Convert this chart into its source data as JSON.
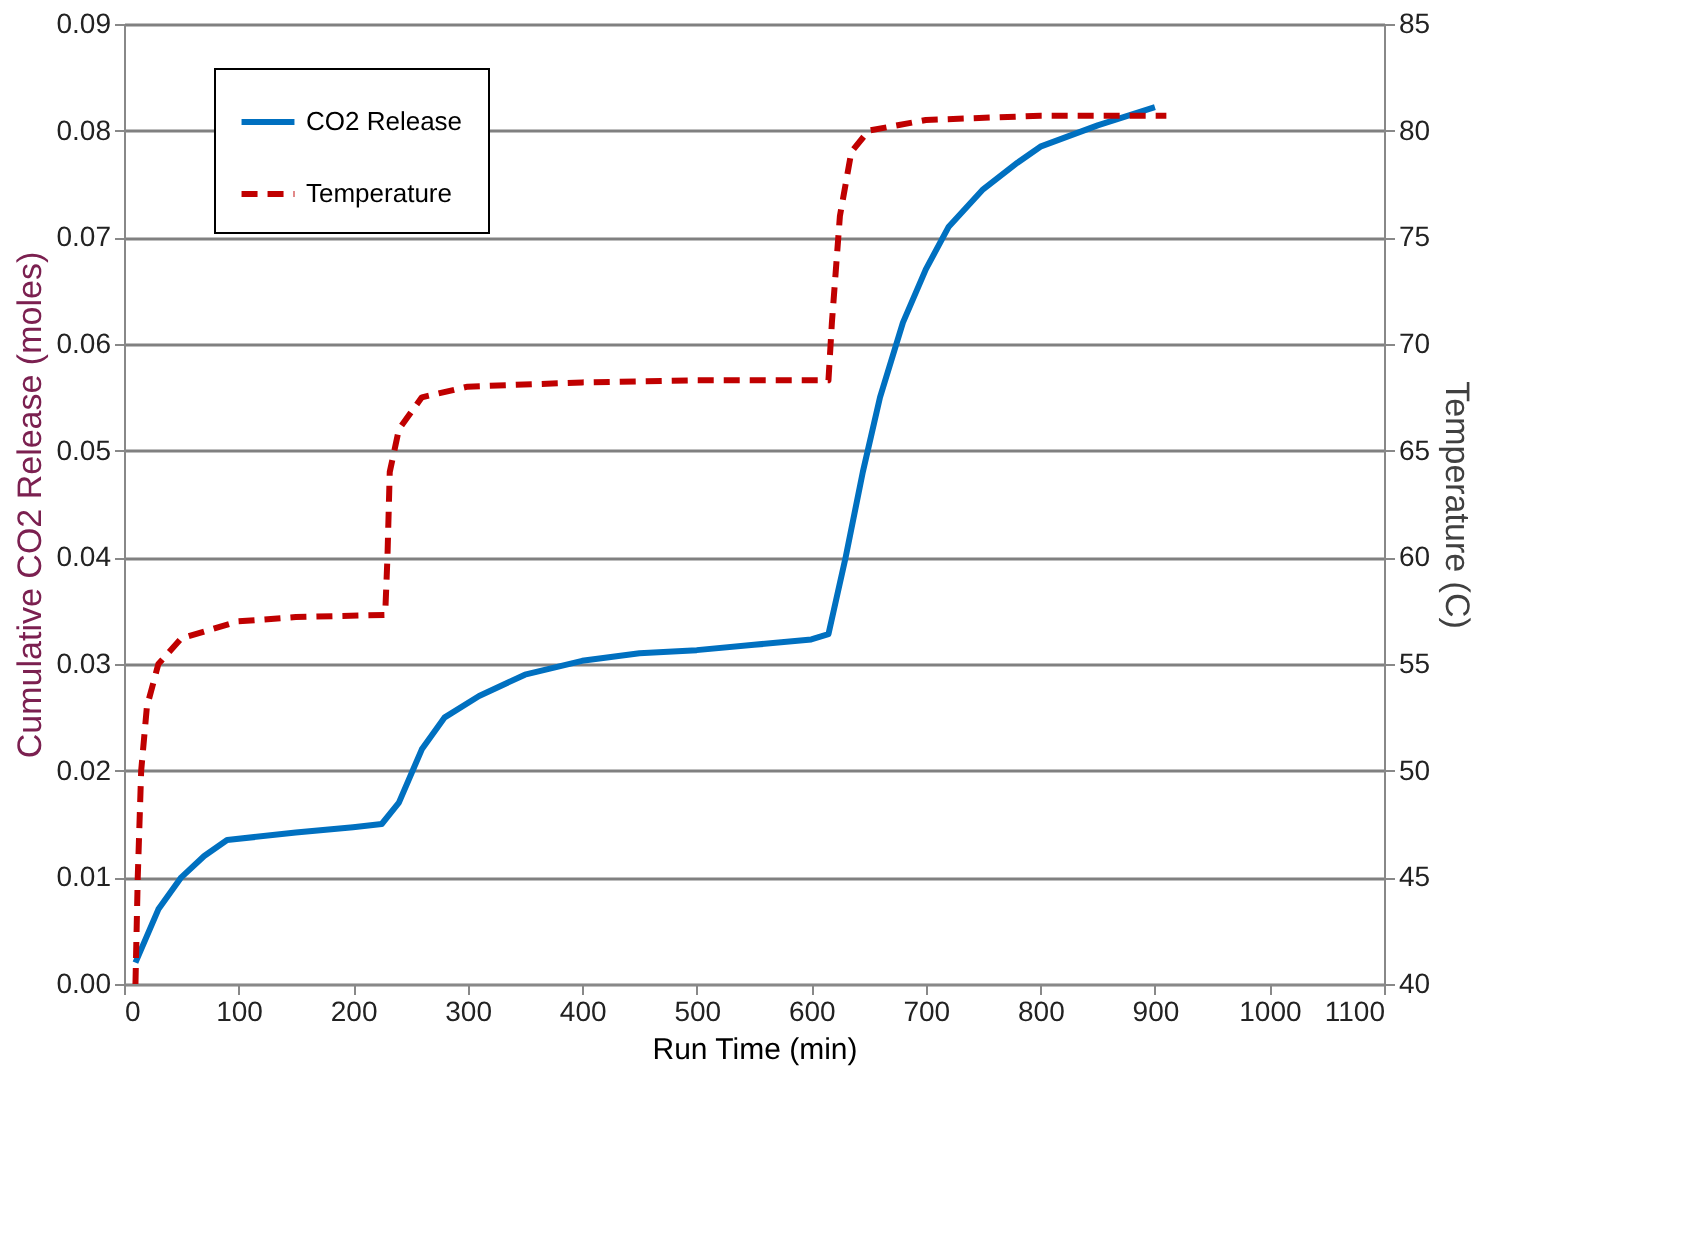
{
  "chart_data": {
    "type": "line",
    "xlabel": "Run Time (min)",
    "ylabel": "Cumulative  CO2 Release (moles)",
    "y2label": "Temperature (C)",
    "xlim": [
      0,
      1100
    ],
    "xticks": [
      0,
      100,
      200,
      300,
      400,
      500,
      600,
      700,
      800,
      900,
      1000,
      1100
    ],
    "ylim": [
      0,
      0.09
    ],
    "yticks": [
      {
        "value": 0,
        "label": "0.00"
      },
      {
        "value": 0.01,
        "label": "0.01"
      },
      {
        "value": 0.02,
        "label": "0.02"
      },
      {
        "value": 0.03,
        "label": "0.03"
      },
      {
        "value": 0.04,
        "label": "0.04"
      },
      {
        "value": 0.05,
        "label": "0.05"
      },
      {
        "value": 0.06,
        "label": "0.06"
      },
      {
        "value": 0.07,
        "label": "0.07"
      },
      {
        "value": 0.08,
        "label": "0.08"
      },
      {
        "value": 0.09,
        "label": "0.09"
      }
    ],
    "y2lim": [
      40,
      85
    ],
    "y2ticks": [
      40,
      45,
      50,
      55,
      60,
      65,
      70,
      75,
      80,
      85
    ],
    "grid": "y",
    "legend": "top left",
    "series": [
      {
        "name": "CO2 Release",
        "color": "#0070c0",
        "line_style": "solid",
        "x": [
          10,
          30,
          50,
          70,
          90,
          150,
          200,
          225,
          240,
          260,
          280,
          310,
          350,
          400,
          450,
          500,
          550,
          600,
          615,
          630,
          645,
          660,
          680,
          700,
          720,
          750,
          780,
          800,
          850,
          900
        ],
        "values": [
          0.002,
          0.007,
          0.01,
          0.012,
          0.0135,
          0.0142,
          0.0147,
          0.015,
          0.017,
          0.022,
          0.025,
          0.027,
          0.029,
          0.0303,
          0.031,
          0.0313,
          0.0318,
          0.0323,
          0.0328,
          0.04,
          0.048,
          0.055,
          0.062,
          0.067,
          0.071,
          0.0745,
          0.077,
          0.0785,
          0.0805,
          0.0822
        ]
      },
      {
        "name": "Temperature",
        "color": "#c00000",
        "line_style": "dashed",
        "axis": "y2",
        "x": [
          10,
          12,
          15,
          20,
          30,
          50,
          100,
          150,
          228,
          230,
          232,
          240,
          260,
          300,
          400,
          500,
          615,
          618,
          625,
          635,
          650,
          700,
          800,
          910
        ],
        "values": [
          40,
          45,
          50,
          53,
          55,
          56.2,
          57,
          57.2,
          57.3,
          60,
          64,
          66,
          67.5,
          68,
          68.2,
          68.3,
          68.3,
          71,
          76,
          79,
          80,
          80.5,
          80.7,
          80.7
        ]
      }
    ]
  }
}
